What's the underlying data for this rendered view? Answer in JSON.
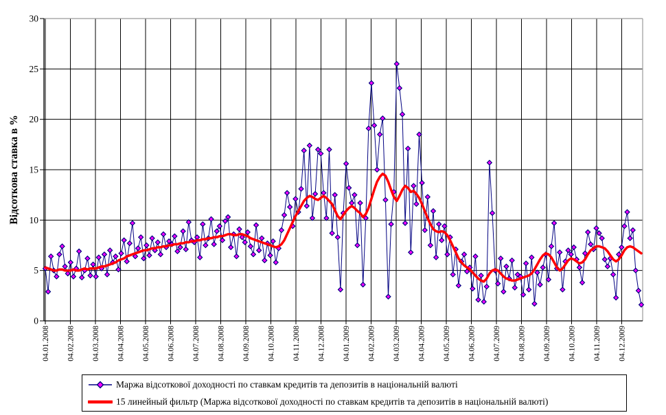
{
  "chart_data": {
    "type": "line",
    "title": "",
    "xlabel": "",
    "ylabel": "Відсоткова ставка в %",
    "ylim": [
      0,
      30
    ],
    "y_ticks": [
      "0",
      "5",
      "10",
      "15",
      "20",
      "25",
      "30"
    ],
    "grid": true,
    "legend_position": "bottom",
    "x_tick_labels": [
      "04.01.2008",
      "04.02.2008",
      "04.03.2008",
      "04.04.2008",
      "04.05.2008",
      "04.06.2008",
      "04.07.2008",
      "04.08.2008",
      "04.09.2008",
      "04.10.2008",
      "04.11.2008",
      "04.12.2008",
      "04.01.2009",
      "04.02.2009",
      "04.03.2009",
      "04.04.2009",
      "04.05.2009",
      "04.06.2009",
      "04.07.2009",
      "04.08.2009",
      "04.09.2009",
      "04.10.2009",
      "04.11.2009",
      "04.12.2009"
    ],
    "series": [
      {
        "name": "Маржа відсоткової доходності по ставкам кредитів та депозитів в національній валюті",
        "color": "#000080",
        "marker": "diamond",
        "marker_color": "#FF00FF",
        "line_width": 1,
        "values": [
          5.2,
          2.9,
          6.4,
          5.0,
          4.4,
          6.6,
          7.4,
          5.4,
          4.7,
          5.8,
          4.4,
          5.2,
          6.9,
          4.3,
          5.0,
          6.2,
          4.5,
          5.6,
          4.4,
          6.3,
          5.2,
          6.6,
          4.6,
          7.0,
          5.8,
          6.4,
          5.1,
          6.7,
          8.0,
          5.9,
          7.7,
          9.7,
          6.4,
          7.2,
          8.3,
          6.2,
          7.5,
          6.5,
          8.2,
          7.0,
          7.8,
          6.6,
          8.6,
          7.3,
          7.9,
          7.6,
          8.4,
          6.9,
          7.3,
          8.9,
          7.1,
          9.8,
          8.0,
          7.8,
          8.3,
          6.3,
          9.6,
          7.5,
          8.2,
          10.1,
          7.6,
          8.9,
          9.4,
          8.0,
          9.9,
          10.3,
          7.3,
          8.6,
          6.4,
          9.1,
          8.3,
          7.8,
          8.8,
          7.4,
          6.6,
          9.5,
          7.0,
          8.2,
          6.0,
          7.7,
          6.5,
          7.9,
          5.8,
          7.2,
          9.0,
          10.5,
          12.7,
          11.3,
          9.4,
          12.1,
          10.8,
          13.1,
          16.9,
          11.4,
          17.4,
          10.2,
          12.6,
          17.0,
          16.6,
          12.7,
          10.2,
          17.0,
          8.7,
          12.5,
          8.3,
          3.1,
          10.7,
          15.6,
          13.2,
          11.7,
          12.5,
          7.5,
          11.7,
          3.6,
          10.2,
          19.1,
          23.6,
          19.4,
          15.0,
          18.5,
          20.1,
          12.0,
          2.4,
          9.6,
          12.8,
          25.5,
          23.1,
          20.5,
          9.7,
          17.1,
          6.8,
          13.4,
          11.6,
          18.5,
          13.7,
          9.0,
          12.3,
          7.5,
          10.9,
          6.3,
          9.6,
          8.0,
          9.4,
          6.6,
          8.3,
          4.6,
          7.1,
          3.5,
          5.9,
          6.6,
          4.9,
          5.3,
          3.2,
          6.4,
          2.1,
          4.5,
          1.9,
          3.4,
          15.7,
          10.7,
          5.0,
          3.7,
          6.2,
          2.9,
          5.4,
          4.2,
          6.0,
          3.3,
          4.6,
          4.4,
          2.6,
          5.7,
          3.1,
          6.3,
          1.7,
          4.8,
          3.6,
          5.3,
          6.6,
          4.1,
          7.4,
          9.7,
          5.2,
          6.8,
          3.1,
          5.9,
          7.0,
          6.6,
          7.3,
          6.1,
          5.3,
          3.8,
          6.7,
          8.8,
          7.6,
          7.1,
          9.2,
          8.7,
          8.2,
          6.1,
          5.4,
          6.2,
          4.6,
          2.3,
          6.6,
          7.3,
          9.4,
          10.8,
          8.2,
          9.0,
          5.0,
          3.0,
          1.6
        ]
      },
      {
        "name": "15 линейный фильтр (Маржа відсоткової доходності по ставкам кредитів та депозитів в національній валюті)",
        "color": "#FF0000",
        "marker": "none",
        "line_width": 3.5,
        "values": [
          5.3,
          5.2,
          5.1,
          5.0,
          5.0,
          5.1,
          5.1,
          5.0,
          5.0,
          5.0,
          5.1,
          5.0,
          5.0,
          5.1,
          5.2,
          5.1,
          5.2,
          5.2,
          5.2,
          5.3,
          5.4,
          5.4,
          5.5,
          5.6,
          5.7,
          5.8,
          6.0,
          6.1,
          6.2,
          6.4,
          6.5,
          6.6,
          6.7,
          6.8,
          6.9,
          7.0,
          7.0,
          7.1,
          7.2,
          7.2,
          7.3,
          7.3,
          7.4,
          7.4,
          7.5,
          7.5,
          7.6,
          7.6,
          7.7,
          7.7,
          7.8,
          7.8,
          7.9,
          7.9,
          8.0,
          8.0,
          8.1,
          8.1,
          8.2,
          8.2,
          8.3,
          8.3,
          8.4,
          8.4,
          8.5,
          8.6,
          8.6,
          8.5,
          8.5,
          8.6,
          8.6,
          8.5,
          8.4,
          8.2,
          8.1,
          8.0,
          7.9,
          7.8,
          7.7,
          7.6,
          7.5,
          7.4,
          7.3,
          7.4,
          7.6,
          8.0,
          8.6,
          9.2,
          9.8,
          10.4,
          10.9,
          11.4,
          11.9,
          12.2,
          12.4,
          12.3,
          12.1,
          12.0,
          12.2,
          12.4,
          12.2,
          11.9,
          11.6,
          11.0,
          10.4,
          10.1,
          10.5,
          10.9,
          11.2,
          11.4,
          11.2,
          10.9,
          10.7,
          10.3,
          10.6,
          11.2,
          12.1,
          13.0,
          13.8,
          14.3,
          14.6,
          14.4,
          13.8,
          13.0,
          12.3,
          11.9,
          12.4,
          13.0,
          13.4,
          13.2,
          12.8,
          12.9,
          12.6,
          12.2,
          11.6,
          10.9,
          10.2,
          9.6,
          9.1,
          8.9,
          8.8,
          8.9,
          8.8,
          8.5,
          8.0,
          7.4,
          6.8,
          6.2,
          5.8,
          5.5,
          5.3,
          5.1,
          4.8,
          4.5,
          4.2,
          4.0,
          3.9,
          4.2,
          4.7,
          5.0,
          5.1,
          5.0,
          4.7,
          4.4,
          4.2,
          4.1,
          4.0,
          4.0,
          4.1,
          4.2,
          4.3,
          4.4,
          4.5,
          4.7,
          5.1,
          5.6,
          6.1,
          6.5,
          6.7,
          6.6,
          6.3,
          5.8,
          5.3,
          5.0,
          5.2,
          5.6,
          6.0,
          6.2,
          6.1,
          5.9,
          5.7,
          5.8,
          6.1,
          6.6,
          7.0,
          7.2,
          7.4,
          7.4,
          7.3,
          7.2,
          6.9,
          6.5,
          6.1,
          5.9,
          6.1,
          6.5,
          7.0,
          7.3,
          7.4,
          7.3,
          7.1,
          6.9,
          6.7
        ]
      }
    ]
  },
  "colors": {
    "grid": "#000000",
    "axis": "#000000",
    "plot_border": "#9a9a9a",
    "text": "#000000",
    "background": "#ffffff"
  },
  "legend": {
    "items": [
      {
        "key": "diamond-marker-line"
      },
      {
        "key": "thick-red-line"
      }
    ]
  }
}
